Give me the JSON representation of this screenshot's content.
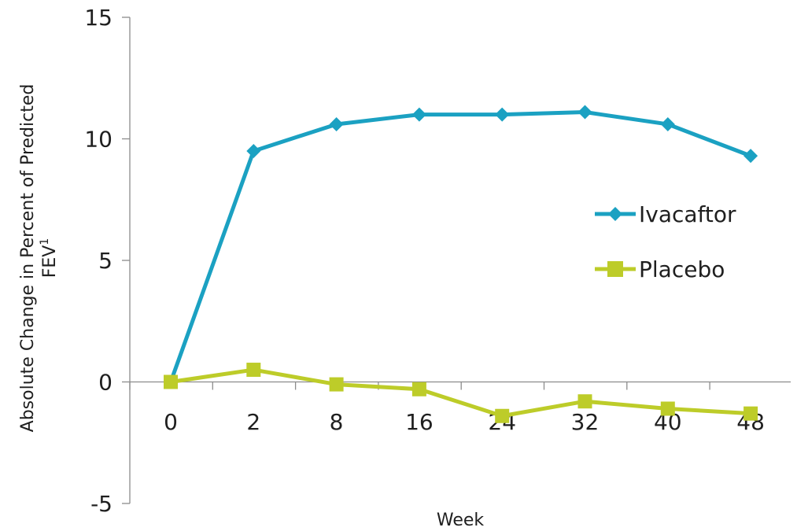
{
  "chart_data": {
    "type": "line",
    "title": "",
    "xlabel": "Week",
    "ylabel_line1": "Absolute Change in Percent of Predicted",
    "ylabel_line2": "FEV",
    "ylabel_superscript": "1",
    "categories": [
      "0",
      "2",
      "8",
      "16",
      "24",
      "32",
      "40",
      "48"
    ],
    "ylim": [
      -5,
      15
    ],
    "yticks": [
      -5,
      0,
      5,
      10,
      15
    ],
    "grid": false,
    "legend": "right",
    "series": [
      {
        "name": "Ivacaftor",
        "marker": "diamond",
        "color": "#1ba1c2",
        "values": [
          0,
          9.5,
          10.6,
          11.0,
          11.0,
          11.1,
          10.6,
          9.3
        ]
      },
      {
        "name": "Placebo",
        "marker": "square",
        "color": "#bdcc29",
        "values": [
          0,
          0.5,
          -0.1,
          -0.3,
          -1.4,
          -0.8,
          -1.1,
          -1.3
        ]
      }
    ]
  }
}
